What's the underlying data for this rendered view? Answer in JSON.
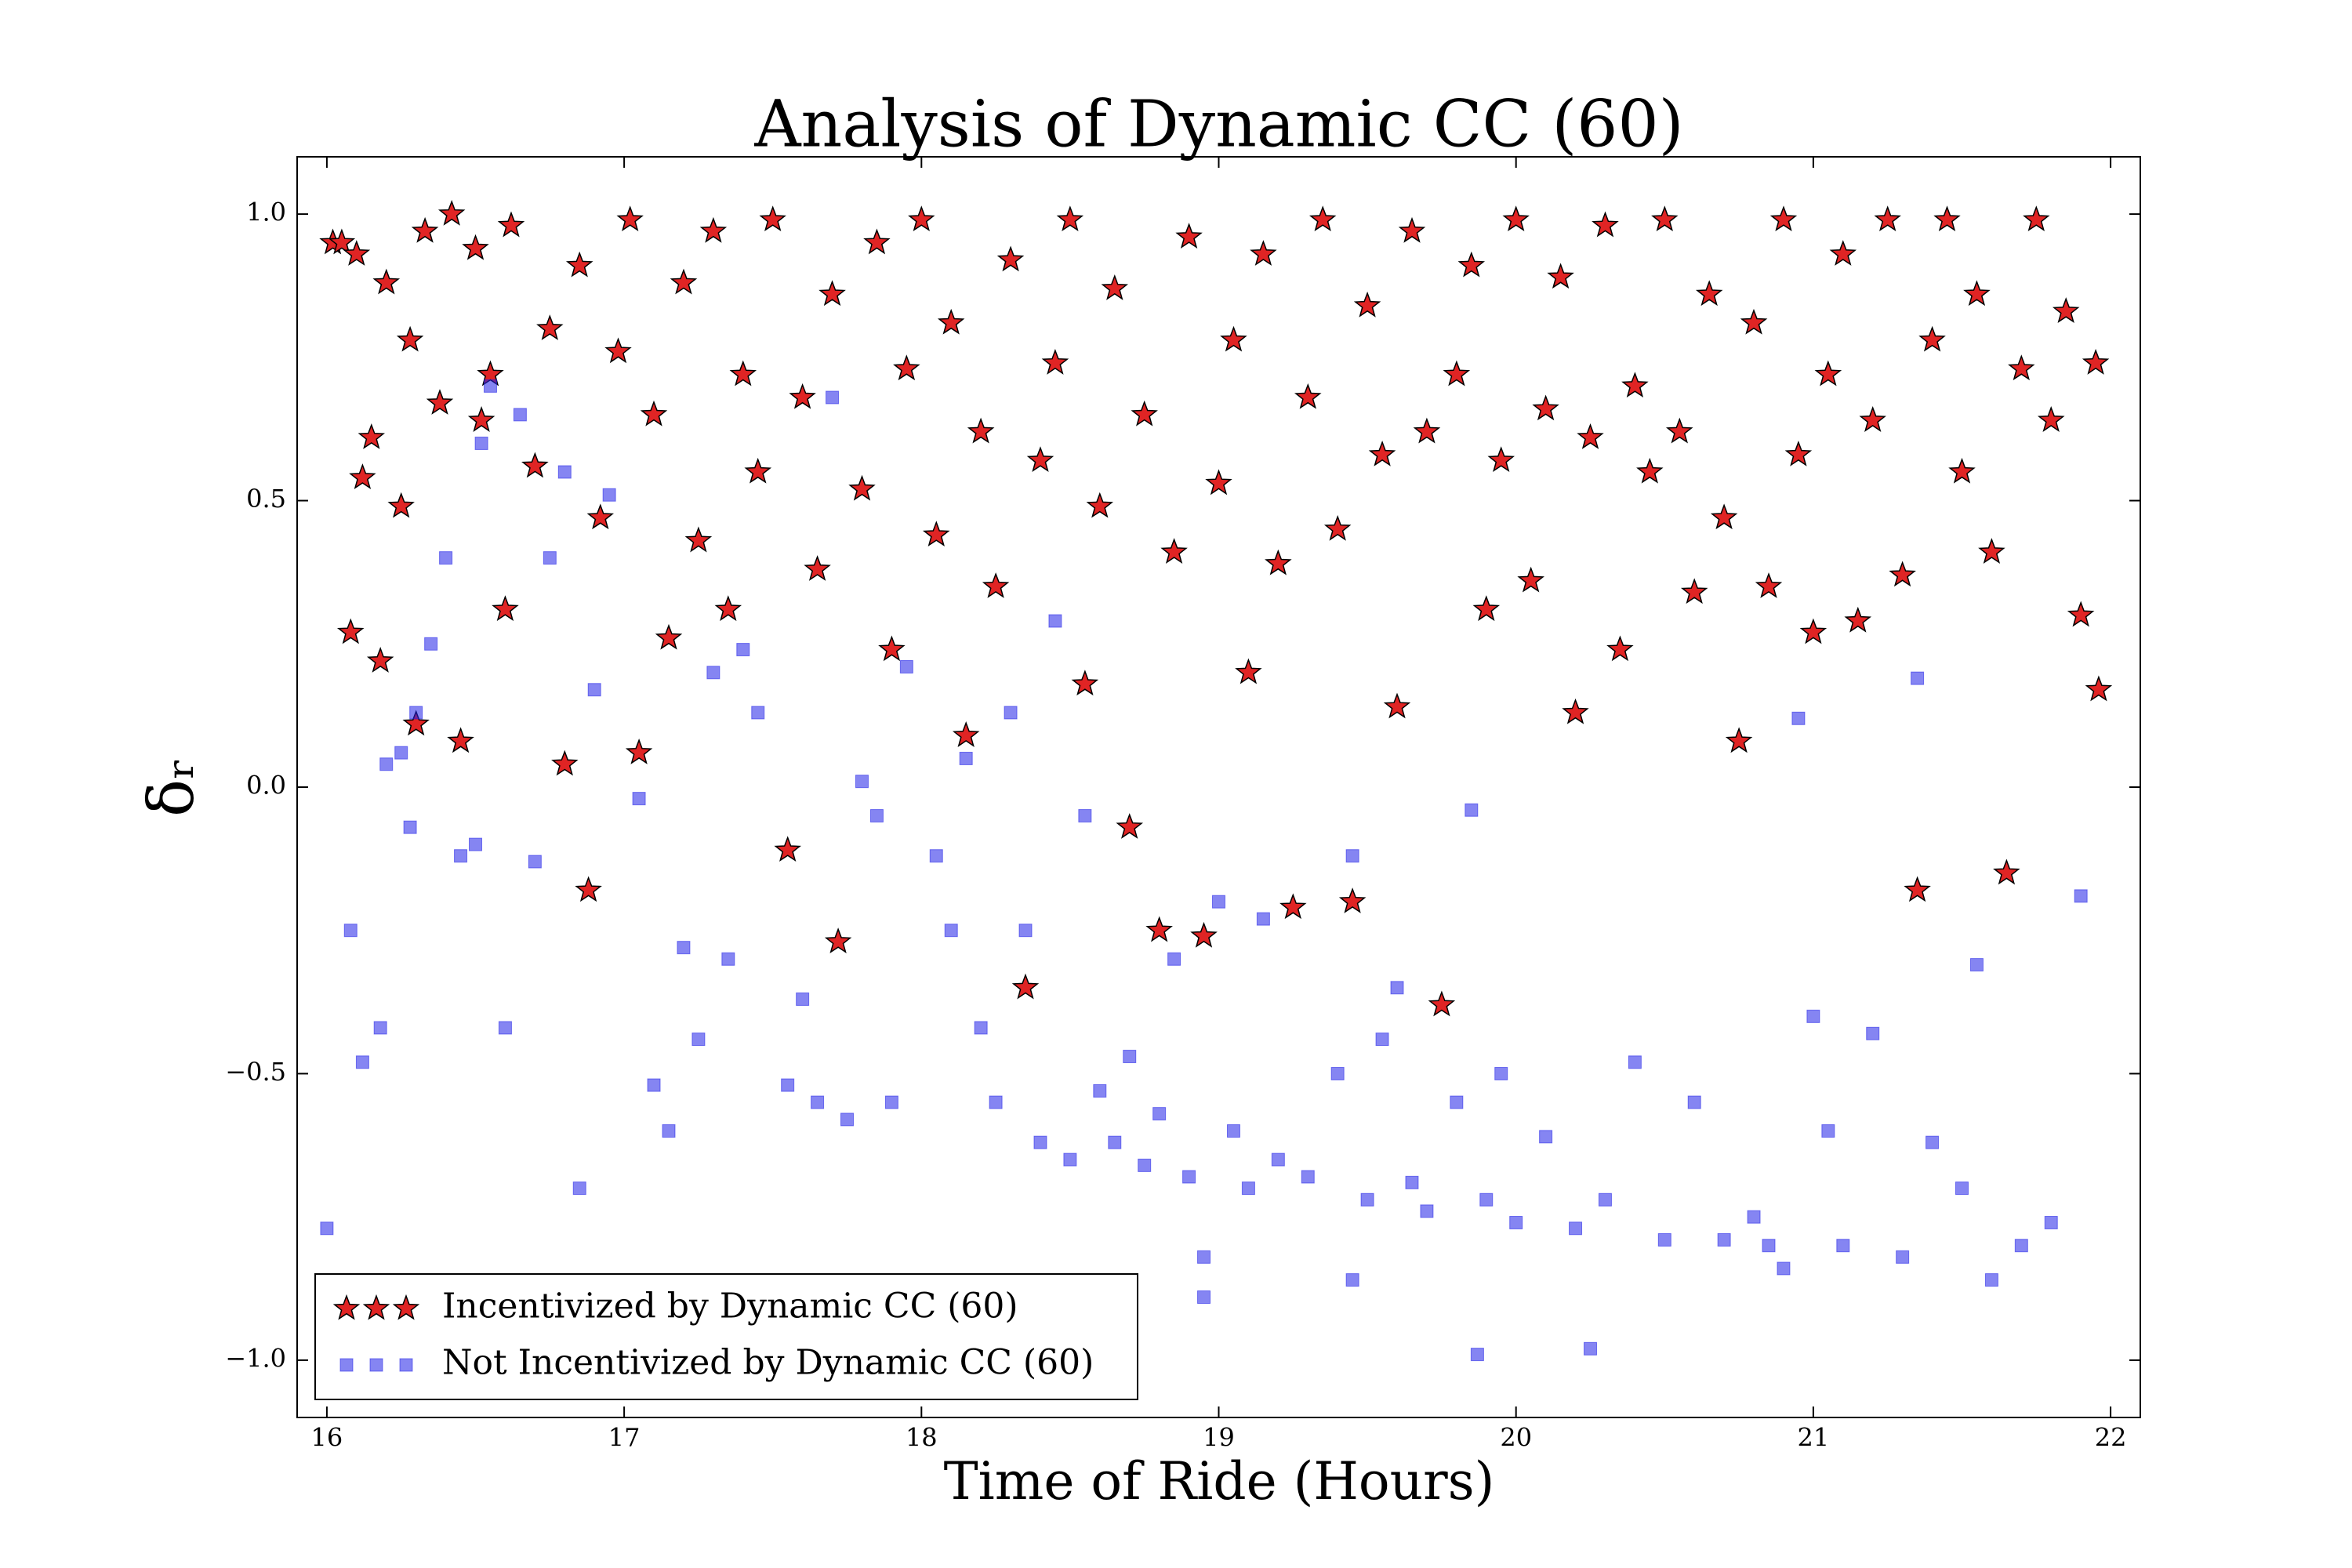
{
  "chart_data": {
    "type": "scatter",
    "title": "Analysis of Dynamic CC (60)",
    "xlabel": "Time of Ride (Hours)",
    "ylabel": "δᵣ",
    "xlim": [
      15.9,
      22.1
    ],
    "ylim": [
      -1.1,
      1.1
    ],
    "xticks": [
      16,
      17,
      18,
      19,
      20,
      21,
      22
    ],
    "yticks": [
      {
        "value": -1.0,
        "label": "−1.0"
      },
      {
        "value": -0.5,
        "label": "−0.5"
      },
      {
        "value": 0.0,
        "label": "0.0"
      },
      0.5,
      {
        "value": 1.0,
        "label": "1.0"
      }
    ],
    "legend": "lower left",
    "series": [
      {
        "name": "Incentivized by Dynamic CC (60)",
        "marker": "star",
        "color": "#e02424",
        "x": [
          16.02,
          16.05,
          16.08,
          16.1,
          16.12,
          16.15,
          16.18,
          16.2,
          16.25,
          16.28,
          16.3,
          16.33,
          16.38,
          16.42,
          16.45,
          16.5,
          16.52,
          16.55,
          16.6,
          16.62,
          16.7,
          16.75,
          16.8,
          16.85,
          16.88,
          16.92,
          16.98,
          17.02,
          17.05,
          17.1,
          17.15,
          17.2,
          17.25,
          17.3,
          17.35,
          17.4,
          17.45,
          17.5,
          17.55,
          17.6,
          17.65,
          17.7,
          17.72,
          17.8,
          17.85,
          17.9,
          17.95,
          18.0,
          18.05,
          18.1,
          18.15,
          18.2,
          18.25,
          18.3,
          18.35,
          18.4,
          18.45,
          18.5,
          18.55,
          18.6,
          18.65,
          18.7,
          18.75,
          18.8,
          18.85,
          18.9,
          18.95,
          19.0,
          19.05,
          19.1,
          19.15,
          19.2,
          19.25,
          19.3,
          19.35,
          19.4,
          19.45,
          19.5,
          19.55,
          19.6,
          19.65,
          19.7,
          19.75,
          19.8,
          19.85,
          19.9,
          19.95,
          20.0,
          20.05,
          20.1,
          20.15,
          20.2,
          20.25,
          20.3,
          20.35,
          20.4,
          20.45,
          20.5,
          20.55,
          20.6,
          20.65,
          20.7,
          20.75,
          20.8,
          20.85,
          20.9,
          20.95,
          21.0,
          21.05,
          21.1,
          21.15,
          21.2,
          21.25,
          21.3,
          21.35,
          21.4,
          21.45,
          21.5,
          21.55,
          21.6,
          21.65,
          21.7,
          21.75,
          21.8,
          21.85,
          21.9,
          21.95,
          21.96
        ],
        "values": [
          0.95,
          0.95,
          0.27,
          0.93,
          0.54,
          0.61,
          0.22,
          0.88,
          0.49,
          0.78,
          0.11,
          0.97,
          0.67,
          1.0,
          0.08,
          0.94,
          0.64,
          0.72,
          0.31,
          0.98,
          0.56,
          0.8,
          0.04,
          0.91,
          -0.18,
          0.47,
          0.76,
          0.99,
          0.06,
          0.65,
          0.26,
          0.88,
          0.43,
          0.97,
          0.31,
          0.72,
          0.55,
          0.99,
          -0.11,
          0.68,
          0.38,
          0.86,
          -0.27,
          0.52,
          0.95,
          0.24,
          0.73,
          0.99,
          0.44,
          0.81,
          0.09,
          0.62,
          0.35,
          0.92,
          -0.35,
          0.57,
          0.74,
          0.99,
          0.18,
          0.49,
          0.87,
          -0.07,
          0.65,
          -0.25,
          0.41,
          0.96,
          -0.26,
          0.53,
          0.78,
          0.2,
          0.93,
          0.39,
          -0.21,
          0.68,
          0.99,
          0.45,
          -0.2,
          0.84,
          0.58,
          0.14,
          0.97,
          0.62,
          -0.38,
          0.72,
          0.91,
          0.31,
          0.57,
          0.99,
          0.36,
          0.66,
          0.89,
          0.13,
          0.61,
          0.98,
          0.24,
          0.7,
          0.55,
          0.99,
          0.62,
          0.34,
          0.86,
          0.47,
          0.08,
          0.81,
          0.35,
          0.99,
          0.58,
          0.27,
          0.72,
          0.93,
          0.29,
          0.64,
          0.99,
          0.37,
          -0.18,
          0.78,
          0.99,
          0.55,
          0.86,
          0.41,
          -0.15,
          0.73,
          0.99,
          0.64,
          0.83,
          0.3,
          0.74,
          0.17
        ]
      },
      {
        "name": "Not Incentivized by Dynamic CC (60)",
        "marker": "square",
        "color": "#2020e8",
        "x": [
          16.0,
          16.08,
          16.12,
          16.18,
          16.2,
          16.25,
          16.28,
          16.3,
          16.35,
          16.4,
          16.45,
          16.5,
          16.52,
          16.55,
          16.6,
          16.65,
          16.7,
          16.75,
          16.8,
          16.85,
          16.9,
          16.95,
          17.05,
          17.1,
          17.15,
          17.2,
          17.25,
          17.3,
          17.35,
          17.4,
          17.45,
          17.55,
          17.6,
          17.65,
          17.7,
          17.75,
          17.8,
          17.85,
          17.9,
          17.95,
          18.05,
          18.1,
          18.15,
          18.2,
          18.25,
          18.3,
          18.35,
          18.4,
          18.45,
          18.5,
          18.55,
          18.6,
          18.65,
          18.7,
          18.75,
          18.8,
          18.85,
          18.9,
          18.95,
          18.95,
          19.0,
          19.05,
          19.1,
          19.15,
          19.2,
          19.3,
          19.4,
          19.45,
          19.45,
          19.5,
          19.55,
          19.6,
          19.65,
          19.7,
          19.8,
          19.85,
          19.87,
          19.9,
          19.95,
          20.0,
          20.1,
          20.2,
          20.25,
          20.3,
          20.4,
          20.5,
          20.6,
          20.7,
          20.8,
          20.85,
          20.9,
          20.95,
          21.0,
          21.05,
          21.1,
          21.2,
          21.3,
          21.35,
          21.4,
          21.5,
          21.55,
          21.6,
          21.7,
          21.8,
          21.9
        ],
        "values": [
          -0.77,
          -0.25,
          -0.48,
          -0.42,
          0.04,
          0.06,
          -0.07,
          0.13,
          0.25,
          0.4,
          -0.12,
          -0.1,
          0.6,
          0.7,
          -0.42,
          0.65,
          -0.13,
          0.4,
          0.55,
          -0.7,
          0.17,
          0.51,
          -0.02,
          -0.52,
          -0.6,
          -0.28,
          -0.44,
          0.2,
          -0.3,
          0.24,
          0.13,
          -0.52,
          -0.37,
          -0.55,
          0.68,
          -0.58,
          0.01,
          -0.05,
          -0.55,
          0.21,
          -0.12,
          -0.25,
          0.05,
          -0.42,
          -0.55,
          0.13,
          -0.25,
          -0.62,
          0.29,
          -0.65,
          -0.05,
          -0.53,
          -0.62,
          -0.47,
          -0.66,
          -0.57,
          -0.3,
          -0.68,
          -0.82,
          -0.89,
          -0.2,
          -0.6,
          -0.7,
          -0.23,
          -0.65,
          -0.68,
          -0.5,
          -0.12,
          -0.86,
          -0.72,
          -0.44,
          -0.35,
          -0.69,
          -0.74,
          -0.55,
          -0.04,
          -0.99,
          -0.72,
          -0.5,
          -0.76,
          -0.61,
          -0.77,
          -0.98,
          -0.72,
          -0.48,
          -0.79,
          -0.55,
          -0.79,
          -0.75,
          -0.8,
          -0.84,
          0.12,
          -0.4,
          -0.6,
          -0.8,
          -0.43,
          -0.82,
          0.19,
          -0.62,
          -0.7,
          -0.31,
          -0.86,
          -0.8,
          -0.76,
          -0.19
        ]
      }
    ]
  }
}
